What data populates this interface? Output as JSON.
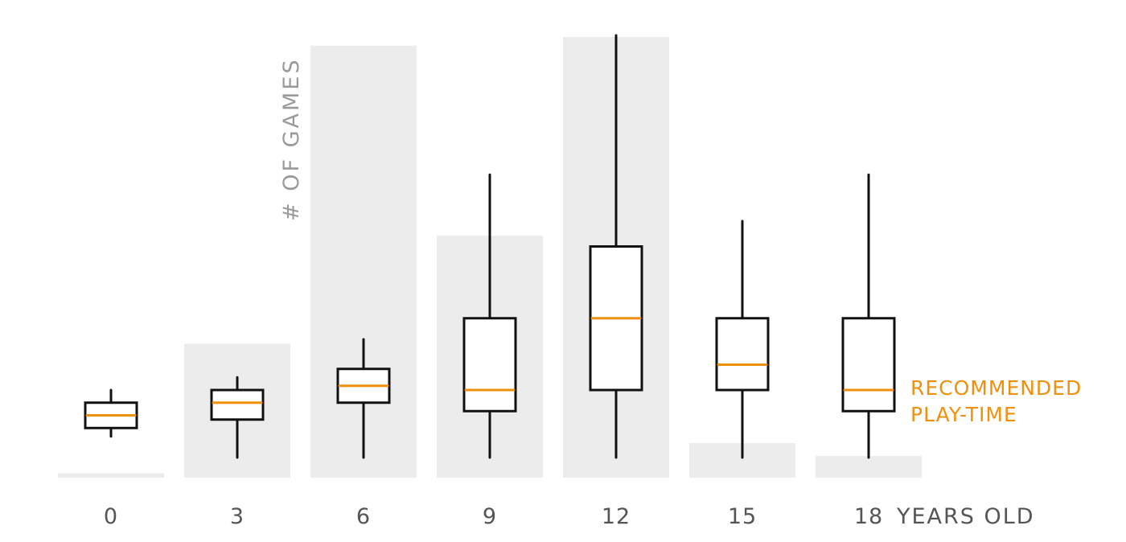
{
  "chart_data": {
    "type": "bar",
    "overlay": "boxplot",
    "title": "",
    "xlabel": "",
    "x_unit_suffix": "YEARS OLD",
    "ylabel": "# OF GAMES",
    "box_annotation": [
      "RECOMMENDED",
      "PLAY-TIME"
    ],
    "categories": [
      "0",
      "3",
      "6",
      "9",
      "12",
      "15",
      "18"
    ],
    "bar_series": {
      "name": "# OF GAMES",
      "values": [
        1,
        31,
        100,
        56,
        102,
        8,
        5
      ],
      "ylim": [
        0,
        102
      ]
    },
    "box_series": {
      "name": "RECOMMENDED PLAY-TIME",
      "ylim": [
        0,
        100
      ],
      "boxes": [
        {
          "whisker_low": 5,
          "q1": 7,
          "median": 10,
          "q3": 13,
          "whisker_high": 16
        },
        {
          "whisker_low": 0,
          "q1": 9,
          "median": 13,
          "q3": 16,
          "whisker_high": 19
        },
        {
          "whisker_low": 0,
          "q1": 13,
          "median": 17,
          "q3": 21,
          "whisker_high": 28
        },
        {
          "whisker_low": 0,
          "q1": 11,
          "median": 16,
          "q3": 33,
          "whisker_high": 67
        },
        {
          "whisker_low": 0,
          "q1": 16,
          "median": 33,
          "q3": 50,
          "whisker_high": 100
        },
        {
          "whisker_low": 0,
          "q1": 16,
          "median": 22,
          "q3": 33,
          "whisker_high": 56
        },
        {
          "whisker_low": 0,
          "q1": 11,
          "median": 16,
          "q3": 33,
          "whisker_high": 67
        }
      ]
    },
    "colors": {
      "bar": "#ececec",
      "box_outline": "#111111",
      "median": "#f0900f",
      "tick_label": "#555555",
      "y_title": "#9a9a9a"
    },
    "grid": false,
    "legend": "none"
  }
}
